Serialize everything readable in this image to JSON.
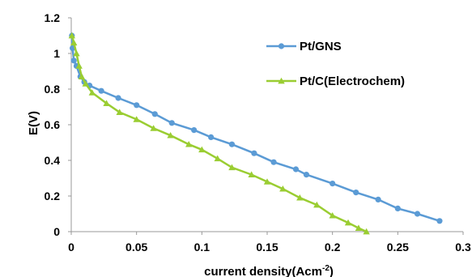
{
  "chart_data": {
    "type": "line",
    "title": "",
    "xlabel": "current density(Acm",
    "xlabel_sup": "-2",
    "xlabel_end": ")",
    "ylabel": "E(V)",
    "xlim": [
      0,
      0.3
    ],
    "ylim": [
      0,
      1.2
    ],
    "x_ticks": [
      "0",
      "0.05",
      "0.1",
      "0.15",
      "0.2",
      "0.25",
      "0.3"
    ],
    "y_ticks": [
      "0",
      "0.2",
      "0.4",
      "0.6",
      "0.8",
      "1",
      "1.2"
    ],
    "legend_position": "top-right",
    "grid": false,
    "series": [
      {
        "name": "Pt/GNS",
        "color": "#5b9bd5",
        "marker": "circle",
        "points": [
          [
            0.0005,
            1.1
          ],
          [
            0.001,
            1.03
          ],
          [
            0.002,
            0.96
          ],
          [
            0.004,
            0.93
          ],
          [
            0.007,
            0.87
          ],
          [
            0.01,
            0.84
          ],
          [
            0.014,
            0.82
          ],
          [
            0.023,
            0.79
          ],
          [
            0.036,
            0.75
          ],
          [
            0.05,
            0.71
          ],
          [
            0.064,
            0.66
          ],
          [
            0.077,
            0.61
          ],
          [
            0.094,
            0.57
          ],
          [
            0.107,
            0.53
          ],
          [
            0.123,
            0.49
          ],
          [
            0.14,
            0.44
          ],
          [
            0.155,
            0.39
          ],
          [
            0.172,
            0.35
          ],
          [
            0.18,
            0.32
          ],
          [
            0.2,
            0.27
          ],
          [
            0.218,
            0.22
          ],
          [
            0.235,
            0.18
          ],
          [
            0.25,
            0.13
          ],
          [
            0.265,
            0.1
          ],
          [
            0.282,
            0.06
          ]
        ]
      },
      {
        "name": "Pt/C(Electrochem)",
        "color": "#9acd32",
        "marker": "triangle",
        "points": [
          [
            0.0005,
            1.1
          ],
          [
            0.002,
            1.06
          ],
          [
            0.004,
            1.0
          ],
          [
            0.006,
            0.93
          ],
          [
            0.008,
            0.87
          ],
          [
            0.011,
            0.83
          ],
          [
            0.016,
            0.78
          ],
          [
            0.027,
            0.72
          ],
          [
            0.037,
            0.67
          ],
          [
            0.05,
            0.63
          ],
          [
            0.063,
            0.58
          ],
          [
            0.076,
            0.54
          ],
          [
            0.09,
            0.49
          ],
          [
            0.1,
            0.46
          ],
          [
            0.112,
            0.41
          ],
          [
            0.123,
            0.36
          ],
          [
            0.138,
            0.32
          ],
          [
            0.15,
            0.28
          ],
          [
            0.162,
            0.24
          ],
          [
            0.175,
            0.19
          ],
          [
            0.188,
            0.15
          ],
          [
            0.2,
            0.09
          ],
          [
            0.212,
            0.05
          ],
          [
            0.22,
            0.02
          ],
          [
            0.226,
            0.0
          ]
        ]
      }
    ]
  }
}
